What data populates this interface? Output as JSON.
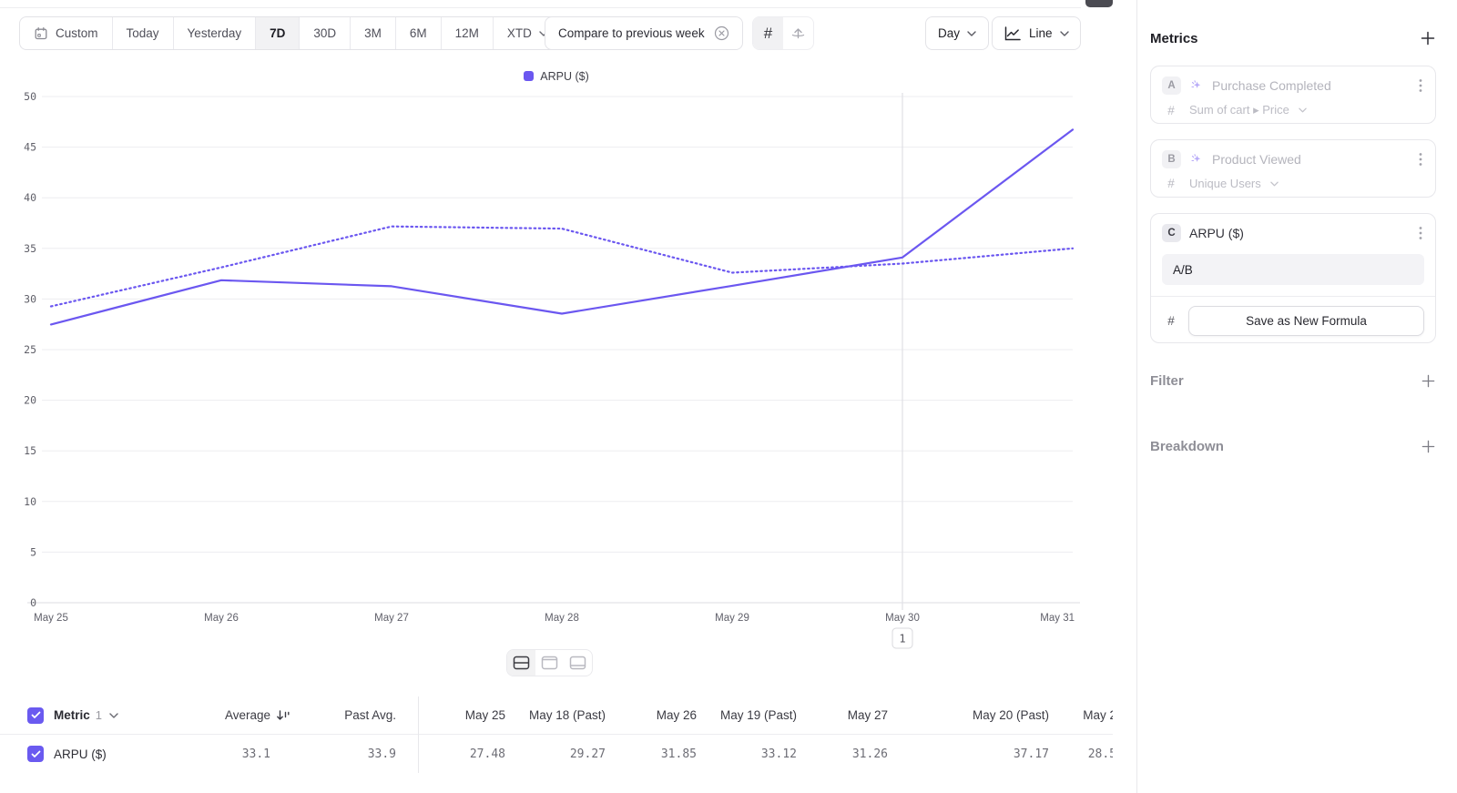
{
  "accent": "#6b57f0",
  "checkbox_color": "#6a5af0",
  "toolbar": {
    "ranges": [
      {
        "label": "Custom",
        "icon": "calendar"
      },
      {
        "label": "Today"
      },
      {
        "label": "Yesterday"
      },
      {
        "label": "7D",
        "selected": true
      },
      {
        "label": "30D"
      },
      {
        "label": "3M"
      },
      {
        "label": "6M"
      },
      {
        "label": "12M"
      },
      {
        "label": "XTD",
        "dropdown": true
      }
    ],
    "compare_label": "Compare to previous week",
    "view_toggles": [
      {
        "name": "grid-values",
        "selected": true
      },
      {
        "name": "annotations",
        "selected": false
      }
    ],
    "interval_label": "Day",
    "chart_type_label": "Line"
  },
  "legend": {
    "label": "ARPU ($)"
  },
  "chart_data": {
    "type": "line",
    "title": "",
    "x": [
      "May 25",
      "May 26",
      "May 27",
      "May 28",
      "May 29",
      "May 30",
      "May 31"
    ],
    "series": [
      {
        "name": "ARPU ($)",
        "line_style": "solid",
        "values": [
          27.48,
          31.85,
          31.26,
          28.55,
          31.3,
          34.1,
          46.73
        ]
      },
      {
        "name": "ARPU ($) (Past)",
        "line_style": "dotted",
        "values": [
          29.27,
          33.12,
          37.17,
          36.95,
          32.6,
          33.5,
          35.0
        ]
      }
    ],
    "ylim": [
      0,
      50
    ],
    "yticks": [
      0,
      5,
      10,
      15,
      20,
      25,
      30,
      35,
      40,
      45,
      50
    ],
    "grid": true,
    "legend_position": "top",
    "color": "#6b57f0",
    "annotation": {
      "x": "May 30",
      "label": "1"
    }
  },
  "layout_toggle": {
    "selected": 0,
    "options": [
      "split-middle",
      "split-top",
      "split-bottom"
    ]
  },
  "table": {
    "metric_label": "Metric",
    "metric_count": "1",
    "summary_columns": [
      "Average",
      "Past Avg."
    ],
    "sorted_column": "Average",
    "date_columns": [
      "May 25",
      "May 18 (Past)",
      "May 26",
      "May 19 (Past)",
      "May 27",
      "May 20 (Past)",
      "May 2"
    ],
    "rows": [
      {
        "label": "ARPU ($)",
        "checked": true,
        "summary": [
          "33.1",
          "33.9"
        ],
        "values": [
          "27.48",
          "29.27",
          "31.85",
          "33.12",
          "31.26",
          "37.17",
          "28.5"
        ]
      }
    ]
  },
  "sidebar": {
    "metrics_title": "Metrics",
    "metrics": [
      {
        "badge": "A",
        "label": "Purchase Completed",
        "measure": "Sum of cart ▸ Price",
        "disabled": true
      },
      {
        "badge": "B",
        "label": "Product Viewed",
        "measure": "Unique Users",
        "disabled": true
      },
      {
        "badge": "C",
        "label": "ARPU ($)",
        "formula": "A/B",
        "action_label": "Save as New Formula",
        "disabled": false
      }
    ],
    "filter_title": "Filter",
    "breakdown_title": "Breakdown"
  }
}
